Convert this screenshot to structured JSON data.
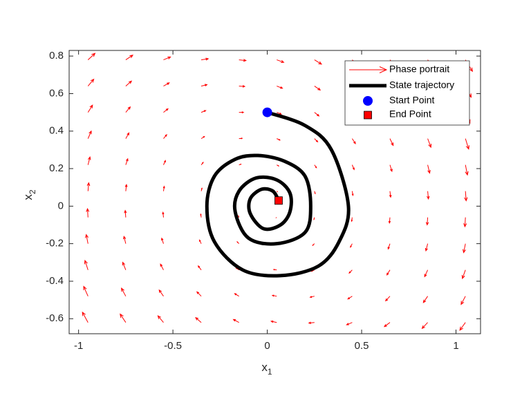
{
  "chart_data": {
    "type": "quiver",
    "xlim": [
      -1.05,
      1.13
    ],
    "ylim": [
      -0.68,
      0.83
    ],
    "xticks": [
      -1,
      -0.5,
      0,
      0.5,
      1
    ],
    "yticks": [
      -0.6,
      -0.4,
      -0.2,
      0,
      0.2,
      0.4,
      0.6,
      0.8
    ],
    "xlabel": {
      "text": "x",
      "sub": "1"
    },
    "ylabel": {
      "text": "x",
      "sub": "2"
    },
    "legend": "northeast",
    "quiver": {
      "name": "Phase portrait",
      "color": "#ff0000",
      "x": [
        -0.95,
        -0.75,
        -0.55,
        -0.35,
        -0.15,
        0.05,
        0.25,
        0.45,
        0.65,
        0.85,
        1.05
      ],
      "y": [
        0.78,
        0.64,
        0.5,
        0.36,
        0.22,
        0.08,
        -0.06,
        -0.2,
        -0.34,
        -0.48,
        -0.62
      ],
      "u": [
        [
          0.78,
          0.78,
          0.78,
          0.78,
          0.78,
          0.78,
          0.78,
          0.78,
          0.78,
          0.78,
          0.78
        ],
        [
          0.64,
          0.64,
          0.64,
          0.64,
          0.64,
          0.64,
          0.64,
          0.64,
          0.64,
          0.64,
          0.64
        ],
        [
          0.5,
          0.5,
          0.5,
          0.5,
          0.5,
          0.5,
          0.5,
          0.5,
          0.5,
          0.5,
          0.5
        ],
        [
          0.36,
          0.36,
          0.36,
          0.36,
          0.36,
          0.36,
          0.36,
          0.36,
          0.36,
          0.36,
          0.36
        ],
        [
          0.22,
          0.22,
          0.22,
          0.22,
          0.22,
          0.22,
          0.22,
          0.22,
          0.22,
          0.22,
          0.22
        ],
        [
          0.08,
          0.08,
          0.08,
          0.08,
          0.08,
          0.08,
          0.08,
          0.08,
          0.08,
          0.08,
          0.08
        ],
        [
          -0.06,
          -0.06,
          -0.06,
          -0.06,
          -0.06,
          -0.06,
          -0.06,
          -0.06,
          -0.06,
          -0.06,
          -0.06
        ],
        [
          -0.2,
          -0.2,
          -0.2,
          -0.2,
          -0.2,
          -0.2,
          -0.2,
          -0.2,
          -0.2,
          -0.2,
          -0.2
        ],
        [
          -0.34,
          -0.34,
          -0.34,
          -0.34,
          -0.34,
          -0.34,
          -0.34,
          -0.34,
          -0.34,
          -0.34,
          -0.34
        ],
        [
          -0.48,
          -0.48,
          -0.48,
          -0.48,
          -0.48,
          -0.48,
          -0.48,
          -0.48,
          -0.48,
          -0.48,
          -0.48
        ],
        [
          -0.62,
          -0.62,
          -0.62,
          -0.62,
          -0.62,
          -0.62,
          -0.62,
          -0.62,
          -0.62,
          -0.62,
          -0.62
        ]
      ],
      "v": [
        [
          0.72,
          0.52,
          0.32,
          0.12,
          -0.08,
          -0.28,
          -0.48,
          -0.68,
          -0.88,
          -1.08,
          -1.28
        ],
        [
          0.76,
          0.56,
          0.36,
          0.16,
          -0.04,
          -0.24,
          -0.44,
          -0.64,
          -0.84,
          -1.04,
          -1.24
        ],
        [
          0.8,
          0.6,
          0.4,
          0.2,
          0,
          -0.2,
          -0.4,
          -0.6,
          -0.8,
          -1,
          -1.2
        ],
        [
          0.84,
          0.64,
          0.44,
          0.24,
          0.04,
          -0.16,
          -0.36,
          -0.56,
          -0.76,
          -0.96,
          -1.16
        ],
        [
          0.88,
          0.68,
          0.48,
          0.28,
          0.08,
          -0.12,
          -0.32,
          -0.52,
          -0.72,
          -0.92,
          -1.12
        ],
        [
          0.93,
          0.73,
          0.53,
          0.33,
          0.13,
          -0.07,
          -0.27,
          -0.47,
          -0.67,
          -0.87,
          -1.07
        ],
        [
          0.97,
          0.77,
          0.57,
          0.37,
          0.17,
          -0.03,
          -0.23,
          -0.43,
          -0.63,
          -0.83,
          -1.03
        ],
        [
          1.01,
          0.81,
          0.61,
          0.41,
          0.21,
          0.01,
          -0.19,
          -0.39,
          -0.59,
          -0.79,
          -0.99
        ],
        [
          1.05,
          0.85,
          0.65,
          0.45,
          0.25,
          0.05,
          -0.15,
          -0.35,
          -0.55,
          -0.75,
          -0.95
        ],
        [
          1.09,
          0.89,
          0.69,
          0.49,
          0.29,
          0.09,
          -0.11,
          -0.31,
          -0.51,
          -0.71,
          -0.91
        ],
        [
          1.14,
          0.94,
          0.74,
          0.54,
          0.34,
          0.14,
          -0.06,
          -0.26,
          -0.46,
          -0.66,
          -0.86
        ]
      ]
    },
    "trajectory": {
      "name": "State trajectory",
      "color": "#000000",
      "x": [
        0,
        0.2,
        0.34,
        0.43,
        0.38,
        0.27,
        0.07,
        -0.13,
        -0.28,
        -0.32,
        -0.28,
        -0.17,
        -0.05,
        0.09,
        0.2,
        0.23,
        0.2,
        0.05,
        -0.1,
        -0.17,
        -0.15,
        -0.06,
        0.05,
        0.12,
        0.12,
        0.07,
        -0.02,
        -0.09,
        -0.09,
        -0.03,
        0.03,
        0.06
      ],
      "y": [
        0.5,
        0.43,
        0.3,
        0,
        -0.19,
        -0.32,
        -0.37,
        -0.34,
        -0.19,
        0,
        0.16,
        0.25,
        0.27,
        0.24,
        0.16,
        0,
        -0.14,
        -0.2,
        -0.17,
        -0.03,
        0.08,
        0.15,
        0.14,
        0.07,
        -0.03,
        -0.1,
        -0.12,
        -0.04,
        0.04,
        0.09,
        0.08,
        0.03
      ]
    },
    "start": {
      "name": "Start Point",
      "color": "#0000ff",
      "x": 0,
      "y": 0.5
    },
    "end": {
      "name": "End Point",
      "color": "#ff0000",
      "x": 0.06,
      "y": 0.03
    }
  }
}
